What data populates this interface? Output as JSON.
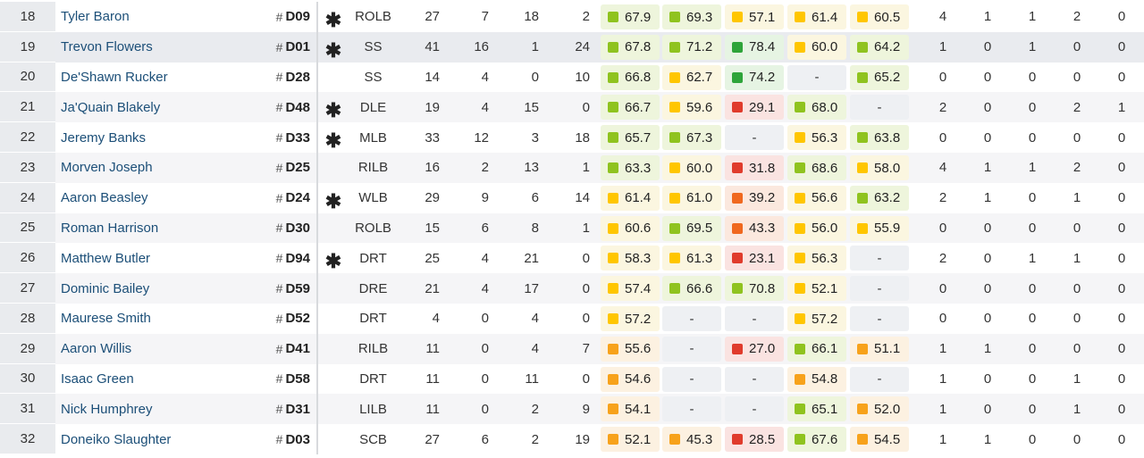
{
  "colors": {
    "elite": "#2ea43a",
    "high": "#8fc31f",
    "average": "#ffc600",
    "below": "#f7a21b",
    "low": "#f0681f",
    "poor": "#e03b2c"
  },
  "players": [
    {
      "rank": "18",
      "name": "Tyler Baron",
      "hash": "#",
      "jersey": "D09",
      "star": "✱",
      "pos": "ROLB",
      "s1": "27",
      "s2": "7",
      "s3": "18",
      "s4": "2",
      "grades": [
        {
          "v": "67.9",
          "c": "high"
        },
        {
          "v": "69.3",
          "c": "high"
        },
        {
          "v": "57.1",
          "c": "average"
        },
        {
          "v": "61.4",
          "c": "average"
        },
        {
          "v": "60.5",
          "c": "average"
        }
      ],
      "t1": "4",
      "t2": "1",
      "t3": "1",
      "t4": "2",
      "t5": "0"
    },
    {
      "rank": "19",
      "name": "Trevon Flowers",
      "hash": "#",
      "jersey": "D01",
      "star": "✱",
      "pos": "SS",
      "s1": "41",
      "s2": "16",
      "s3": "1",
      "s4": "24",
      "grades": [
        {
          "v": "67.8",
          "c": "high"
        },
        {
          "v": "71.2",
          "c": "high"
        },
        {
          "v": "78.4",
          "c": "elite"
        },
        {
          "v": "60.0",
          "c": "average"
        },
        {
          "v": "64.2",
          "c": "high"
        }
      ],
      "t1": "1",
      "t2": "0",
      "t3": "1",
      "t4": "0",
      "t5": "0"
    },
    {
      "rank": "20",
      "name": "De'Shawn Rucker",
      "hash": "#",
      "jersey": "D28",
      "star": "",
      "pos": "SS",
      "s1": "14",
      "s2": "4",
      "s3": "0",
      "s4": "10",
      "grades": [
        {
          "v": "66.8",
          "c": "high"
        },
        {
          "v": "62.7",
          "c": "average"
        },
        {
          "v": "74.2",
          "c": "elite"
        },
        {
          "v": "-",
          "c": ""
        },
        {
          "v": "65.2",
          "c": "high"
        }
      ],
      "t1": "0",
      "t2": "0",
      "t3": "0",
      "t4": "0",
      "t5": "0"
    },
    {
      "rank": "21",
      "name": "Ja'Quain Blakely",
      "hash": "#",
      "jersey": "D48",
      "star": "✱",
      "pos": "DLE",
      "s1": "19",
      "s2": "4",
      "s3": "15",
      "s4": "0",
      "grades": [
        {
          "v": "66.7",
          "c": "high"
        },
        {
          "v": "59.6",
          "c": "average"
        },
        {
          "v": "29.1",
          "c": "poor"
        },
        {
          "v": "68.0",
          "c": "high"
        },
        {
          "v": "-",
          "c": ""
        }
      ],
      "t1": "2",
      "t2": "0",
      "t3": "0",
      "t4": "2",
      "t5": "1"
    },
    {
      "rank": "22",
      "name": "Jeremy Banks",
      "hash": "#",
      "jersey": "D33",
      "star": "✱",
      "pos": "MLB",
      "s1": "33",
      "s2": "12",
      "s3": "3",
      "s4": "18",
      "grades": [
        {
          "v": "65.7",
          "c": "high"
        },
        {
          "v": "67.3",
          "c": "high"
        },
        {
          "v": "-",
          "c": ""
        },
        {
          "v": "56.3",
          "c": "average"
        },
        {
          "v": "63.8",
          "c": "high"
        }
      ],
      "t1": "0",
      "t2": "0",
      "t3": "0",
      "t4": "0",
      "t5": "0"
    },
    {
      "rank": "23",
      "name": "Morven Joseph",
      "hash": "#",
      "jersey": "D25",
      "star": "",
      "pos": "RILB",
      "s1": "16",
      "s2": "2",
      "s3": "13",
      "s4": "1",
      "grades": [
        {
          "v": "63.3",
          "c": "high"
        },
        {
          "v": "60.0",
          "c": "average"
        },
        {
          "v": "31.8",
          "c": "poor"
        },
        {
          "v": "68.6",
          "c": "high"
        },
        {
          "v": "58.0",
          "c": "average"
        }
      ],
      "t1": "4",
      "t2": "1",
      "t3": "1",
      "t4": "2",
      "t5": "0"
    },
    {
      "rank": "24",
      "name": "Aaron Beasley",
      "hash": "#",
      "jersey": "D24",
      "star": "✱",
      "pos": "WLB",
      "s1": "29",
      "s2": "9",
      "s3": "6",
      "s4": "14",
      "grades": [
        {
          "v": "61.4",
          "c": "average"
        },
        {
          "v": "61.0",
          "c": "average"
        },
        {
          "v": "39.2",
          "c": "low"
        },
        {
          "v": "56.6",
          "c": "average"
        },
        {
          "v": "63.2",
          "c": "high"
        }
      ],
      "t1": "2",
      "t2": "1",
      "t3": "0",
      "t4": "1",
      "t5": "0"
    },
    {
      "rank": "25",
      "name": "Roman Harrison",
      "hash": "#",
      "jersey": "D30",
      "star": "",
      "pos": "ROLB",
      "s1": "15",
      "s2": "6",
      "s3": "8",
      "s4": "1",
      "grades": [
        {
          "v": "60.6",
          "c": "average"
        },
        {
          "v": "69.5",
          "c": "high"
        },
        {
          "v": "43.3",
          "c": "low"
        },
        {
          "v": "56.0",
          "c": "average"
        },
        {
          "v": "55.9",
          "c": "average"
        }
      ],
      "t1": "0",
      "t2": "0",
      "t3": "0",
      "t4": "0",
      "t5": "0"
    },
    {
      "rank": "26",
      "name": "Matthew Butler",
      "hash": "#",
      "jersey": "D94",
      "star": "✱",
      "pos": "DRT",
      "s1": "25",
      "s2": "4",
      "s3": "21",
      "s4": "0",
      "grades": [
        {
          "v": "58.3",
          "c": "average"
        },
        {
          "v": "61.3",
          "c": "average"
        },
        {
          "v": "23.1",
          "c": "poor"
        },
        {
          "v": "56.3",
          "c": "average"
        },
        {
          "v": "-",
          "c": ""
        }
      ],
      "t1": "2",
      "t2": "0",
      "t3": "1",
      "t4": "1",
      "t5": "0"
    },
    {
      "rank": "27",
      "name": "Dominic Bailey",
      "hash": "#",
      "jersey": "D59",
      "star": "",
      "pos": "DRE",
      "s1": "21",
      "s2": "4",
      "s3": "17",
      "s4": "0",
      "grades": [
        {
          "v": "57.4",
          "c": "average"
        },
        {
          "v": "66.6",
          "c": "high"
        },
        {
          "v": "70.8",
          "c": "high"
        },
        {
          "v": "52.1",
          "c": "average"
        },
        {
          "v": "-",
          "c": ""
        }
      ],
      "t1": "0",
      "t2": "0",
      "t3": "0",
      "t4": "0",
      "t5": "0"
    },
    {
      "rank": "28",
      "name": "Maurese Smith",
      "hash": "#",
      "jersey": "D52",
      "star": "",
      "pos": "DRT",
      "s1": "4",
      "s2": "0",
      "s3": "4",
      "s4": "0",
      "grades": [
        {
          "v": "57.2",
          "c": "average"
        },
        {
          "v": "-",
          "c": ""
        },
        {
          "v": "-",
          "c": ""
        },
        {
          "v": "57.2",
          "c": "average"
        },
        {
          "v": "-",
          "c": ""
        }
      ],
      "t1": "0",
      "t2": "0",
      "t3": "0",
      "t4": "0",
      "t5": "0"
    },
    {
      "rank": "29",
      "name": "Aaron Willis",
      "hash": "#",
      "jersey": "D41",
      "star": "",
      "pos": "RILB",
      "s1": "11",
      "s2": "0",
      "s3": "4",
      "s4": "7",
      "grades": [
        {
          "v": "55.6",
          "c": "below"
        },
        {
          "v": "-",
          "c": ""
        },
        {
          "v": "27.0",
          "c": "poor"
        },
        {
          "v": "66.1",
          "c": "high"
        },
        {
          "v": "51.1",
          "c": "below"
        }
      ],
      "t1": "1",
      "t2": "1",
      "t3": "0",
      "t4": "0",
      "t5": "0"
    },
    {
      "rank": "30",
      "name": "Isaac Green",
      "hash": "#",
      "jersey": "D58",
      "star": "",
      "pos": "DRT",
      "s1": "11",
      "s2": "0",
      "s3": "11",
      "s4": "0",
      "grades": [
        {
          "v": "54.6",
          "c": "below"
        },
        {
          "v": "-",
          "c": ""
        },
        {
          "v": "-",
          "c": ""
        },
        {
          "v": "54.8",
          "c": "below"
        },
        {
          "v": "-",
          "c": ""
        }
      ],
      "t1": "1",
      "t2": "0",
      "t3": "0",
      "t4": "1",
      "t5": "0"
    },
    {
      "rank": "31",
      "name": "Nick Humphrey",
      "hash": "#",
      "jersey": "D31",
      "star": "",
      "pos": "LILB",
      "s1": "11",
      "s2": "0",
      "s3": "2",
      "s4": "9",
      "grades": [
        {
          "v": "54.1",
          "c": "below"
        },
        {
          "v": "-",
          "c": ""
        },
        {
          "v": "-",
          "c": ""
        },
        {
          "v": "65.1",
          "c": "high"
        },
        {
          "v": "52.0",
          "c": "below"
        }
      ],
      "t1": "1",
      "t2": "0",
      "t3": "0",
      "t4": "1",
      "t5": "0"
    },
    {
      "rank": "32",
      "name": "Doneiko Slaughter",
      "hash": "#",
      "jersey": "D03",
      "star": "",
      "pos": "SCB",
      "s1": "27",
      "s2": "6",
      "s3": "2",
      "s4": "19",
      "grades": [
        {
          "v": "52.1",
          "c": "below"
        },
        {
          "v": "45.3",
          "c": "below"
        },
        {
          "v": "28.5",
          "c": "poor"
        },
        {
          "v": "67.6",
          "c": "high"
        },
        {
          "v": "54.5",
          "c": "below"
        }
      ],
      "t1": "1",
      "t2": "1",
      "t3": "0",
      "t4": "0",
      "t5": "0"
    }
  ]
}
